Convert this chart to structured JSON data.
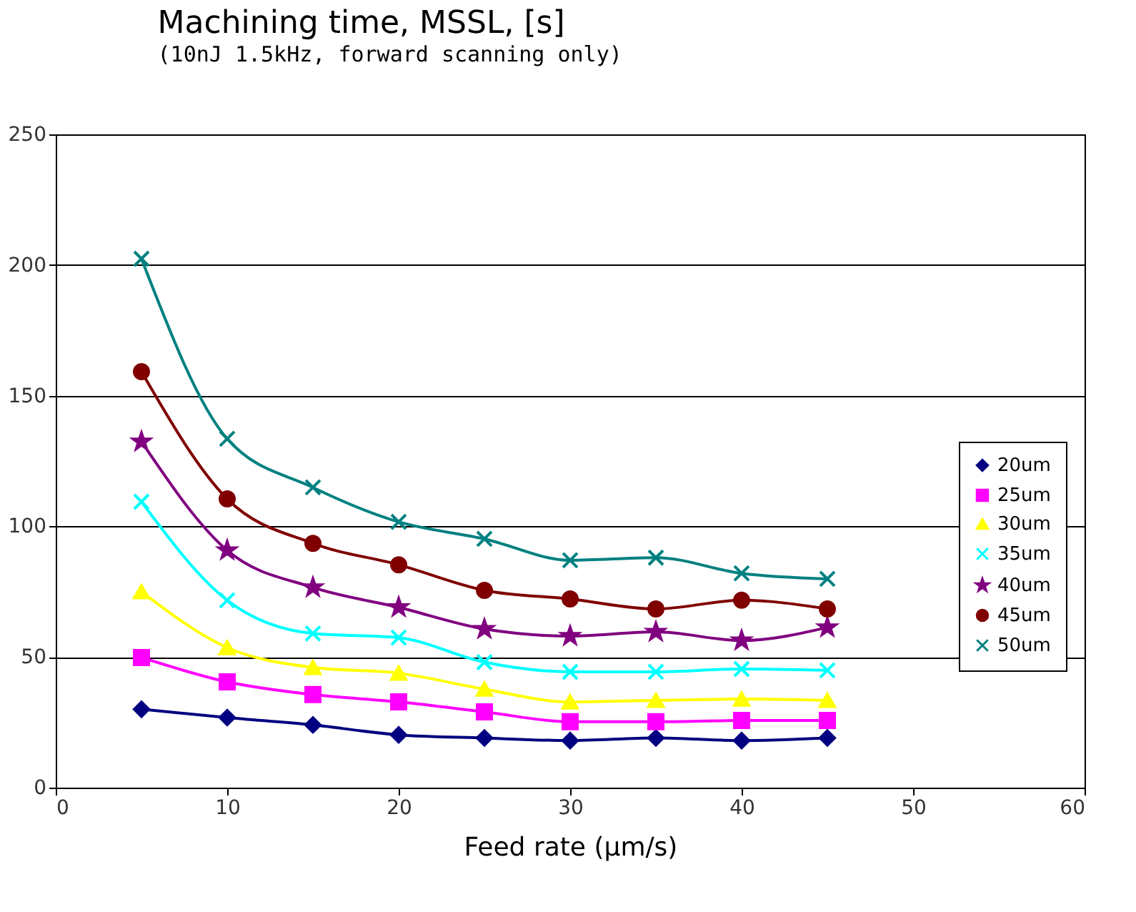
{
  "chart_data": {
    "type": "line",
    "title": "Machining time, MSSL, [s]",
    "subtitle": "(10nJ 1.5kHz, forward scanning only)",
    "xlabel": "Feed rate (μm/s)",
    "x": [
      5,
      10,
      15,
      20,
      25,
      30,
      35,
      40,
      45
    ],
    "xlim": [
      0,
      60
    ],
    "xticks": [
      0,
      10,
      20,
      30,
      40,
      50,
      60
    ],
    "ylim": [
      0,
      250
    ],
    "yticks": [
      0,
      50,
      100,
      150,
      200,
      250
    ],
    "grid": "y",
    "legend": "right",
    "series": [
      {
        "name": "20um",
        "color": "#000080",
        "marker": "diamond",
        "values": [
          30,
          26.8,
          24,
          20.2,
          19,
          18,
          19,
          18,
          19
        ]
      },
      {
        "name": "25um",
        "color": "#ff00ff",
        "marker": "square",
        "values": [
          49.8,
          40.5,
          35.6,
          32.8,
          29,
          25.2,
          25.2,
          25.7,
          25.7
        ]
      },
      {
        "name": "30um",
        "color": "#ffff00",
        "marker": "triangle",
        "values": [
          75,
          53.6,
          46,
          43.8,
          37.7,
          32.8,
          33.4,
          33.9,
          33.4
        ]
      },
      {
        "name": "35um",
        "color": "#00ffff",
        "marker": "cross",
        "values": [
          109.4,
          71.7,
          59,
          57.4,
          48,
          44.3,
          44.3,
          45.4,
          44.9
        ]
      },
      {
        "name": "40um",
        "color": "#800080",
        "marker": "star",
        "values": [
          132.4,
          90.8,
          76.6,
          69,
          60.7,
          58,
          59.6,
          56.3,
          61.3
        ]
      },
      {
        "name": "45um",
        "color": "#800000",
        "marker": "circle",
        "values": [
          159.2,
          110.5,
          93.5,
          85.3,
          75.5,
          72.2,
          68.4,
          71.7,
          68.4
        ]
      },
      {
        "name": "50um",
        "color": "#008080",
        "marker": "cross",
        "values": [
          202.4,
          133.5,
          114.9,
          101.7,
          95.2,
          87,
          88,
          82,
          79.9
        ]
      }
    ]
  }
}
